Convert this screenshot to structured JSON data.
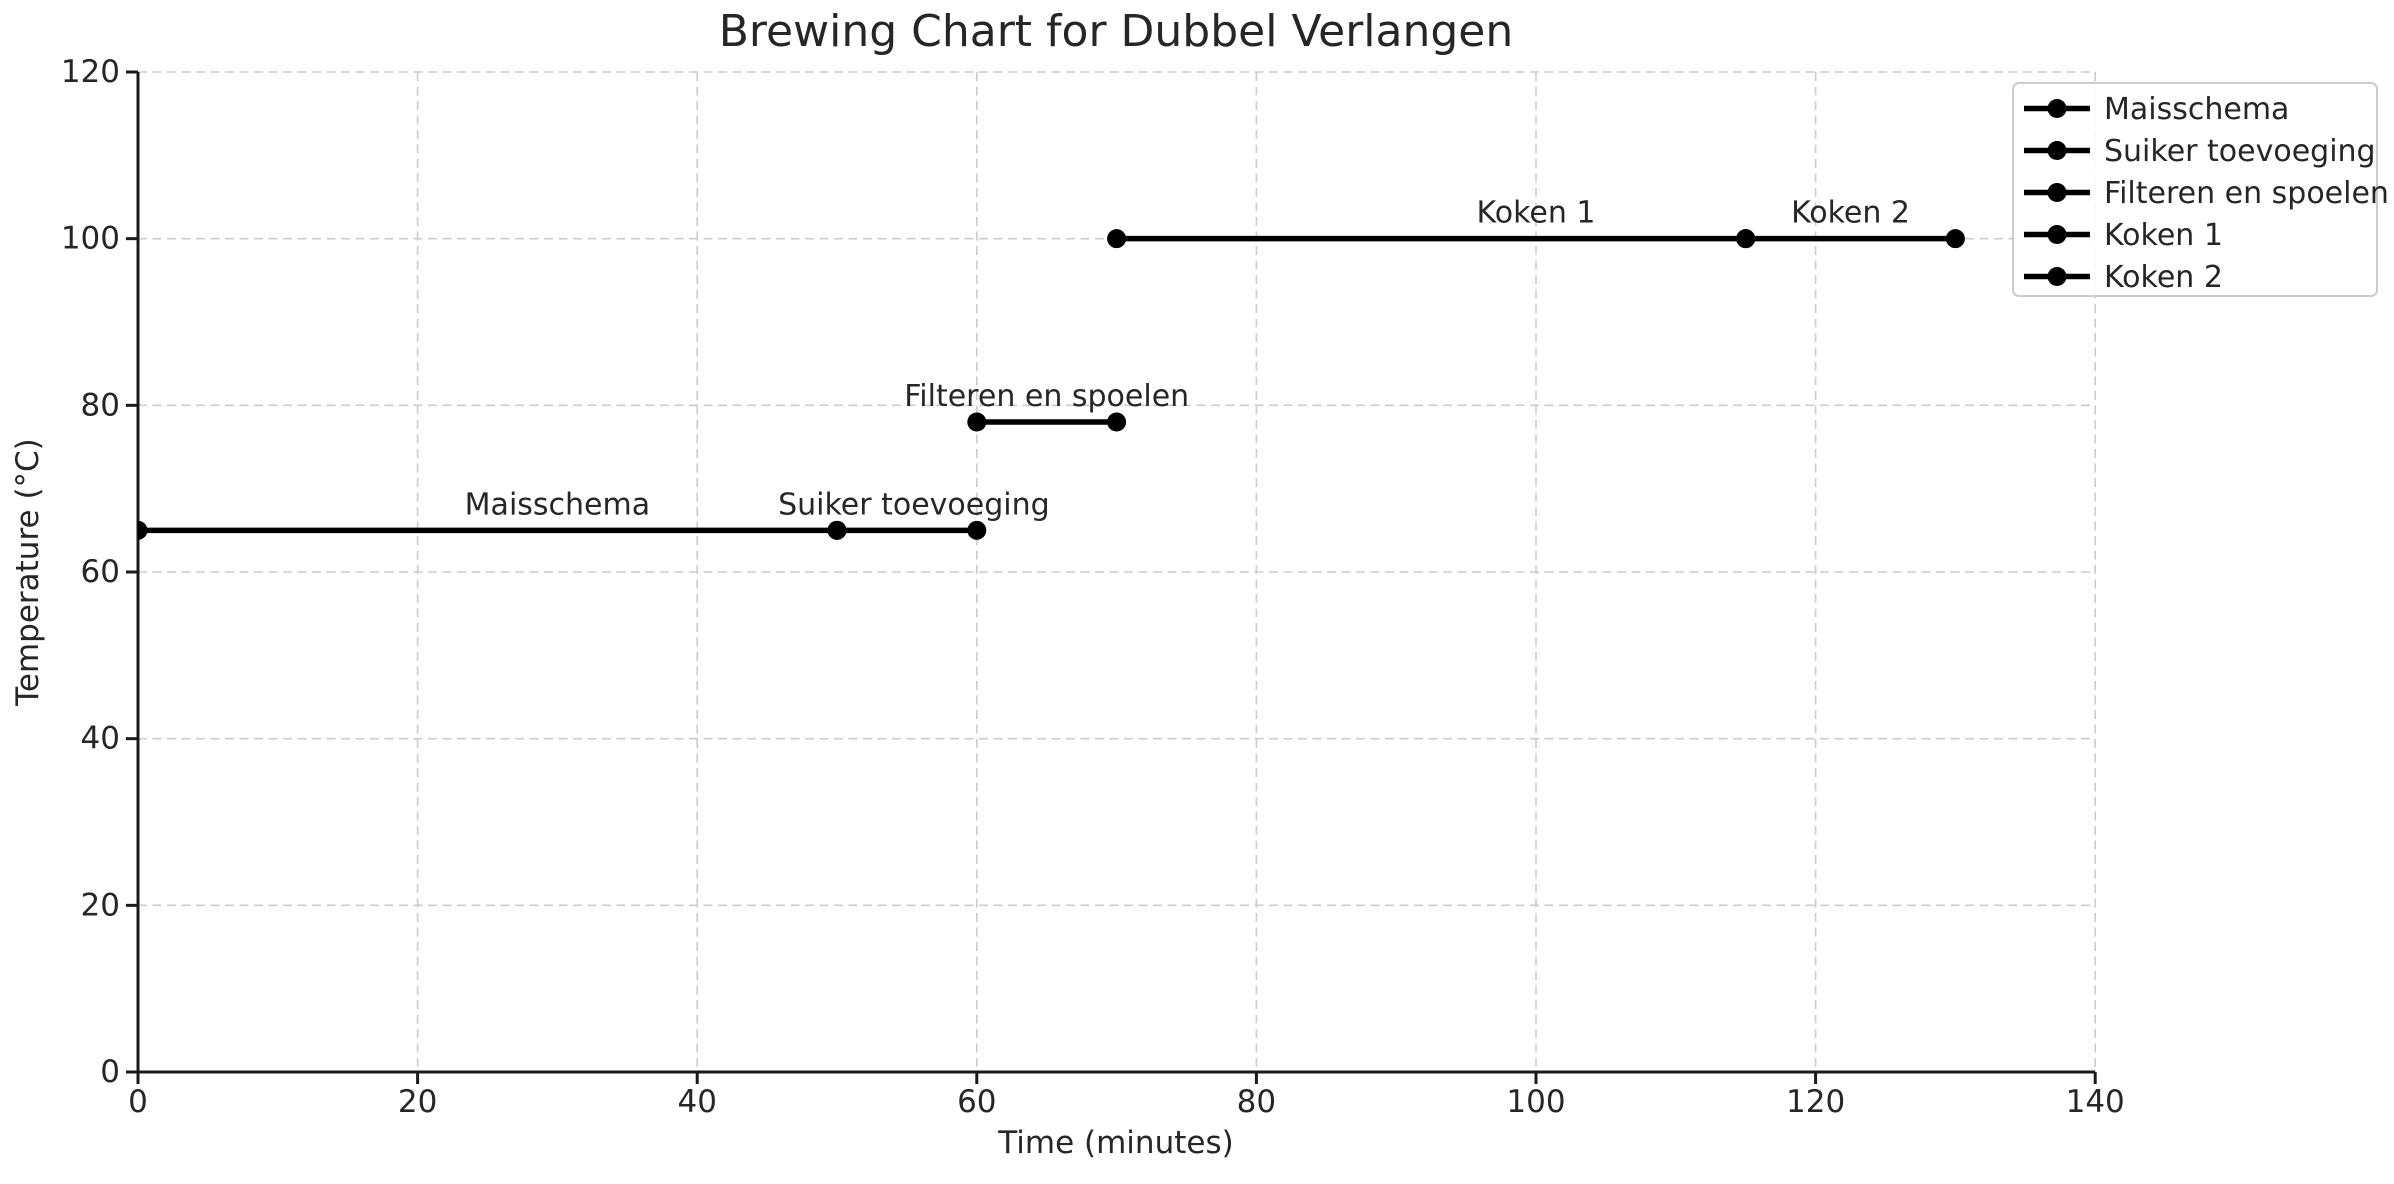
{
  "figure": {
    "background": "#ffffff"
  },
  "chart_data": {
    "type": "line",
    "title": "Brewing Chart for Dubbel Verlangen",
    "xlabel": "Time (minutes)",
    "ylabel": "Temperature (°C)",
    "xlim": [
      0,
      140
    ],
    "ylim": [
      0,
      120
    ],
    "xticks": [
      0,
      20,
      40,
      60,
      80,
      100,
      120,
      140
    ],
    "yticks": [
      0,
      20,
      40,
      60,
      80,
      100,
      120
    ],
    "grid": true,
    "grid_style": "dashed",
    "legend_position": "upper-right",
    "marker": "o",
    "line_color": "#000000",
    "marker_color": "#000000",
    "text_color": "#262626",
    "grid_color": "#cccccc",
    "spine_color": "#1a1a1a",
    "series": [
      {
        "name": "Maisschema",
        "x": [
          0,
          50
        ],
        "y": [
          65,
          65
        ],
        "label_text": "Maisschema",
        "label_x": 30,
        "label_y": 65
      },
      {
        "name": "Suiker toevoeging",
        "x": [
          50,
          60
        ],
        "y": [
          65,
          65
        ],
        "label_text": "Suiker toevoeging",
        "label_x": 55.5,
        "label_y": 65
      },
      {
        "name": "Filteren en spoelen",
        "x": [
          60,
          70
        ],
        "y": [
          78,
          78
        ],
        "label_text": "Filteren en spoelen",
        "label_x": 65,
        "label_y": 78
      },
      {
        "name": "Koken 1",
        "x": [
          70,
          115
        ],
        "y": [
          100,
          100
        ],
        "label_text": "Koken 1",
        "label_x": 100,
        "label_y": 100
      },
      {
        "name": "Koken 2",
        "x": [
          115,
          130
        ],
        "y": [
          100,
          100
        ],
        "label_text": "Koken 2",
        "label_x": 122.5,
        "label_y": 100
      }
    ],
    "legend_items": [
      "Maisschema",
      "Suiker toevoeging",
      "Filteren en spoelen",
      "Koken 1",
      "Koken 2"
    ]
  }
}
